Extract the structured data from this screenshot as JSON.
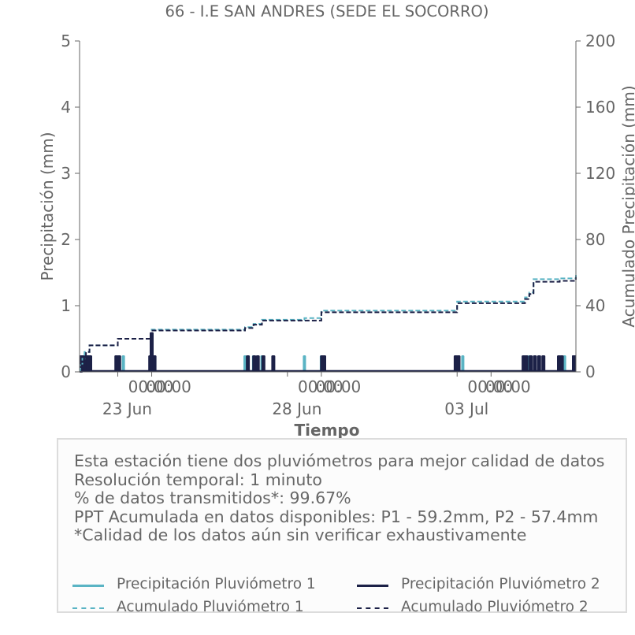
{
  "chart_data": {
    "type": "bar+line",
    "title": "66 - I.E SAN ANDRES (SEDE EL SOCORRO)",
    "xlabel": "Tiempo",
    "ylabel_left": "Precipitación (mm)",
    "ylabel_right": "Acumulado Precipitación (mm)",
    "x_range": [
      "2023-06-21T21:00",
      "2023-07-06T12:00"
    ],
    "ylim_left": [
      0,
      5
    ],
    "ylim_right": [
      0,
      200
    ],
    "yticks_left": [
      "0",
      "1",
      "2",
      "3",
      "4",
      "5"
    ],
    "yticks_right": [
      "0",
      "40",
      "80",
      "120",
      "160",
      "200"
    ],
    "x_ticks": [
      {
        "time": "2023-06-23T00:00",
        "label": "00:00"
      },
      {
        "time": "2023-06-28T00:00",
        "label": "00:00"
      },
      {
        "time": "2023-07-03T00:00",
        "label": "00:00"
      }
    ],
    "x_ticks_extra": [
      "2023-06-24T00:00",
      "2023-06-29T00:00",
      "2023-07-04T00:00"
    ],
    "x_date_labels": [
      {
        "time": "2023-06-23T00:00",
        "label": "23 Jun"
      },
      {
        "time": "2023-06-28T00:00",
        "label": "28 Jun"
      },
      {
        "time": "2023-07-03T00:00",
        "label": "03 Jul"
      }
    ],
    "grid": false,
    "colors": {
      "p1": "#5ab4c4",
      "p2": "#1c2147",
      "axis": "#666666",
      "text": "#666666"
    },
    "series": [
      {
        "name": "Precipitación Pluviómetro 1",
        "kind": "bar",
        "axis": "left",
        "points": [
          {
            "t": "2023-06-21T21:30",
            "v": 0.25
          },
          {
            "t": "2023-06-21T23:00",
            "v": 0.25
          },
          {
            "t": "2023-06-22T00:30",
            "v": 0.25
          },
          {
            "t": "2023-06-23T00:00",
            "v": 0.25
          },
          {
            "t": "2023-06-23T04:00",
            "v": 0.25
          },
          {
            "t": "2023-06-24T00:00",
            "v": 0.25
          },
          {
            "t": "2023-06-26T18:00",
            "v": 0.25
          },
          {
            "t": "2023-06-27T00:00",
            "v": 0.25
          },
          {
            "t": "2023-06-27T06:00",
            "v": 0.25
          },
          {
            "t": "2023-06-28T12:00",
            "v": 0.25
          },
          {
            "t": "2023-06-29T00:00",
            "v": 0.25
          },
          {
            "t": "2023-07-03T00:00",
            "v": 0.25
          },
          {
            "t": "2023-07-03T04:00",
            "v": 0.25
          },
          {
            "t": "2023-07-05T00:00",
            "v": 0.25
          },
          {
            "t": "2023-07-05T03:00",
            "v": 0.25
          },
          {
            "t": "2023-07-06T00:30",
            "v": 0.25
          },
          {
            "t": "2023-07-06T04:00",
            "v": 0.25
          },
          {
            "t": "2023-07-06T16:30",
            "v": 0.25
          },
          {
            "t": "2023-07-06T23:00",
            "v": 0.25
          }
        ]
      },
      {
        "name": "Precipitación Pluviómetro 2",
        "kind": "bar",
        "axis": "left",
        "points": [
          {
            "t": "2023-06-21T21:00",
            "v": 0.25
          },
          {
            "t": "2023-06-21T22:30",
            "v": 0.25
          },
          {
            "t": "2023-06-22T00:00",
            "v": 0.25
          },
          {
            "t": "2023-06-22T01:30",
            "v": 0.25
          },
          {
            "t": "2023-06-22T03:00",
            "v": 0.25
          },
          {
            "t": "2023-06-22T04:30",
            "v": 0.25
          },
          {
            "t": "2023-06-22T23:00",
            "v": 0.25
          },
          {
            "t": "2023-06-23T01:00",
            "v": 0.25
          },
          {
            "t": "2023-06-23T23:00",
            "v": 0.25
          },
          {
            "t": "2023-06-24T00:00",
            "v": 0.6
          },
          {
            "t": "2023-06-24T02:00",
            "v": 0.25
          },
          {
            "t": "2023-06-26T20:00",
            "v": 0.25
          },
          {
            "t": "2023-06-27T00:30",
            "v": 0.25
          },
          {
            "t": "2023-06-27T03:00",
            "v": 0.25
          },
          {
            "t": "2023-06-27T07:00",
            "v": 0.25
          },
          {
            "t": "2023-06-27T14:00",
            "v": 0.25
          },
          {
            "t": "2023-06-29T00:30",
            "v": 0.25
          },
          {
            "t": "2023-06-29T02:00",
            "v": 0.25
          },
          {
            "t": "2023-07-02T23:00",
            "v": 0.25
          },
          {
            "t": "2023-07-03T01:00",
            "v": 0.25
          },
          {
            "t": "2023-07-04T23:00",
            "v": 0.25
          },
          {
            "t": "2023-07-05T01:00",
            "v": 0.25
          },
          {
            "t": "2023-07-05T04:00",
            "v": 0.25
          },
          {
            "t": "2023-07-05T07:00",
            "v": 0.25
          },
          {
            "t": "2023-07-05T10:00",
            "v": 0.25
          },
          {
            "t": "2023-07-05T13:00",
            "v": 0.25
          },
          {
            "t": "2023-07-06T00:00",
            "v": 0.25
          },
          {
            "t": "2023-07-06T02:00",
            "v": 0.25
          },
          {
            "t": "2023-07-06T16:00",
            "v": 0.25
          },
          {
            "t": "2023-07-06T22:00",
            "v": 0.25
          },
          {
            "t": "2023-07-07T00:00",
            "v": 0.25
          },
          {
            "t": "2023-07-07T02:00",
            "v": 0.25
          }
        ]
      },
      {
        "name": "Acumulado Pluviómetro 1",
        "kind": "step",
        "axis": "right",
        "points": [
          {
            "t": "2023-06-21T21:00",
            "v": 0
          },
          {
            "t": "2023-06-21T21:30",
            "v": 4
          },
          {
            "t": "2023-06-21T23:00",
            "v": 8
          },
          {
            "t": "2023-06-22T00:30",
            "v": 12
          },
          {
            "t": "2023-06-22T04:00",
            "v": 16
          },
          {
            "t": "2023-06-23T00:00",
            "v": 20
          },
          {
            "t": "2023-06-24T00:00",
            "v": 25.5
          },
          {
            "t": "2023-06-26T18:00",
            "v": 27
          },
          {
            "t": "2023-06-27T00:00",
            "v": 29
          },
          {
            "t": "2023-06-27T06:00",
            "v": 31.5
          },
          {
            "t": "2023-06-28T12:00",
            "v": 32.5
          },
          {
            "t": "2023-06-29T00:00",
            "v": 37
          },
          {
            "t": "2023-07-03T00:00",
            "v": 42.5
          },
          {
            "t": "2023-07-05T00:00",
            "v": 45
          },
          {
            "t": "2023-07-05T03:00",
            "v": 48
          },
          {
            "t": "2023-07-05T06:00",
            "v": 56
          },
          {
            "t": "2023-07-06T00:30",
            "v": 56.5
          },
          {
            "t": "2023-07-06T16:00",
            "v": 57
          },
          {
            "t": "2023-07-06T23:00",
            "v": 59.2
          },
          {
            "t": "2023-07-07T03:00",
            "v": 59.2
          }
        ]
      },
      {
        "name": "Acumulado Pluviómetro 2",
        "kind": "step",
        "axis": "right",
        "points": [
          {
            "t": "2023-06-21T21:00",
            "v": 0
          },
          {
            "t": "2023-06-21T22:30",
            "v": 4
          },
          {
            "t": "2023-06-22T00:00",
            "v": 8
          },
          {
            "t": "2023-06-22T01:30",
            "v": 12
          },
          {
            "t": "2023-06-22T04:00",
            "v": 16
          },
          {
            "t": "2023-06-23T00:00",
            "v": 20
          },
          {
            "t": "2023-06-24T00:00",
            "v": 25
          },
          {
            "t": "2023-06-26T18:00",
            "v": 26.5
          },
          {
            "t": "2023-06-27T00:00",
            "v": 28.5
          },
          {
            "t": "2023-06-27T06:00",
            "v": 31
          },
          {
            "t": "2023-06-29T00:00",
            "v": 36
          },
          {
            "t": "2023-07-03T00:00",
            "v": 41.5
          },
          {
            "t": "2023-07-05T00:00",
            "v": 44
          },
          {
            "t": "2023-07-05T03:00",
            "v": 47
          },
          {
            "t": "2023-07-05T06:00",
            "v": 54.5
          },
          {
            "t": "2023-07-06T00:30",
            "v": 55
          },
          {
            "t": "2023-07-06T16:00",
            "v": 56
          },
          {
            "t": "2023-07-06T23:00",
            "v": 57.4
          },
          {
            "t": "2023-07-07T03:00",
            "v": 57.4
          }
        ]
      }
    ]
  },
  "info": {
    "lines": [
      "Esta estación tiene dos pluviómetros para mejor calidad de datos",
      "Resolución temporal: 1 minuto",
      "% de datos transmitidos*: 99.67%",
      "PPT Acumulada en datos disponibles: P1 - 59.2mm, P2 - 57.4mm",
      "*Calidad de los datos aún sin verificar exhaustivamente"
    ]
  },
  "legend": {
    "items": [
      {
        "label": "Precipitación Pluviómetro 1",
        "color": "#5ab4c4",
        "style": "solid"
      },
      {
        "label": "Precipitación Pluviómetro 2",
        "color": "#1c2147",
        "style": "solid"
      },
      {
        "label": "Acumulado Pluviómetro 1",
        "color": "#5ab4c4",
        "style": "dashed"
      },
      {
        "label": "Acumulado Pluviómetro 2",
        "color": "#1c2147",
        "style": "dashed"
      }
    ]
  }
}
